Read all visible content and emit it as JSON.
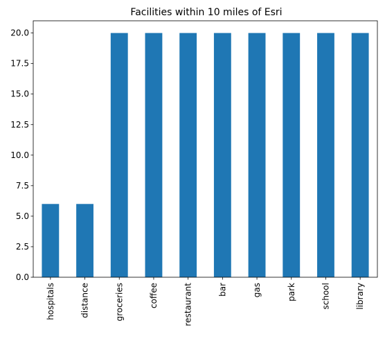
{
  "chart_data": {
    "type": "bar",
    "title": "Facilities within 10 miles of Esri",
    "xlabel": "",
    "ylabel": "",
    "categories": [
      "hospitals",
      "distance",
      "groceries",
      "coffee",
      "restaurant",
      "bar",
      "gas",
      "park",
      "school",
      "library"
    ],
    "values": [
      6,
      6,
      20,
      20,
      20,
      20,
      20,
      20,
      20,
      20
    ],
    "ylim": [
      0,
      21
    ],
    "yticks": [
      "0.0",
      "2.5",
      "5.0",
      "7.5",
      "10.0",
      "12.5",
      "15.0",
      "17.5",
      "20.0"
    ],
    "bar_color": "#1f77b4",
    "grid": false,
    "legend": false
  }
}
